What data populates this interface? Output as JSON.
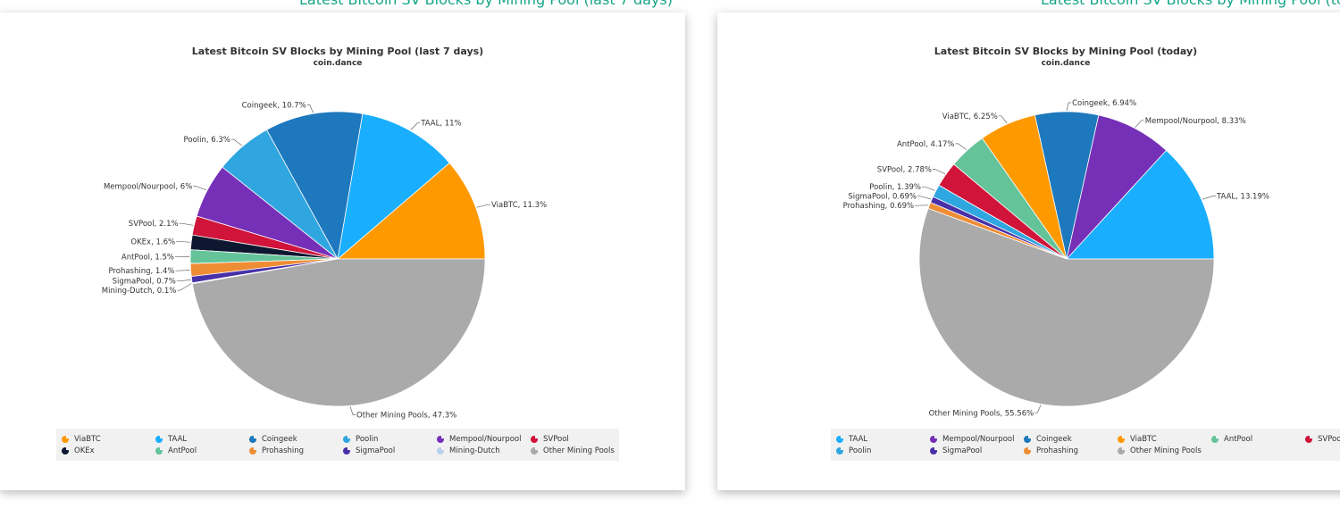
{
  "header": {
    "left_text": "Latest Bitcoin SV Blocks by Mining Pool (last 7 days)",
    "right_text": "Latest Bitcoin SV Blocks by Mining Pool (today)"
  },
  "chart_data": [
    {
      "type": "pie",
      "title": "Latest Bitcoin SV Blocks by Mining Pool (last 7 days)",
      "subtitle": "coin.dance",
      "unit": "%",
      "slices": [
        {
          "name": "ViaBTC",
          "value": 11.3,
          "label": "ViaBTC, 11.3%",
          "color": "#ff9900"
        },
        {
          "name": "TAAL",
          "value": 11,
          "label": "TAAL, 11%",
          "color": "#1aaeff"
        },
        {
          "name": "Coingeek",
          "value": 10.7,
          "label": "Coingeek, 10.7%",
          "color": "#1e78bd"
        },
        {
          "name": "Poolin",
          "value": 6.3,
          "label": "Poolin, 6.3%",
          "color": "#2fa6e0"
        },
        {
          "name": "Mempool/Nourpool",
          "value": 6,
          "label": "Mempool/Nourpool, 6%",
          "color": "#7630b8"
        },
        {
          "name": "SVPool",
          "value": 2.1,
          "label": "SVPool, 2.1%",
          "color": "#d0143a"
        },
        {
          "name": "OKEx",
          "value": 1.6,
          "label": "OKEx, 1.6%",
          "color": "#0e1730"
        },
        {
          "name": "AntPool",
          "value": 1.5,
          "label": "AntPool, 1.5%",
          "color": "#65c39a"
        },
        {
          "name": "Prohashing",
          "value": 1.4,
          "label": "Prohashing, 1.4%",
          "color": "#ef8d35"
        },
        {
          "name": "SigmaPool",
          "value": 0.7,
          "label": "SigmaPool, 0.7%",
          "color": "#4830a8"
        },
        {
          "name": "Mining-Dutch",
          "value": 0.1,
          "label": "Mining-Dutch, 0.1%",
          "color": "#b8d0f0"
        },
        {
          "name": "Other Mining Pools",
          "value": 47.3,
          "label": "Other Mining Pools, 47.3%",
          "color": "#aaaaaa"
        }
      ],
      "legend": [
        "ViaBTC",
        "TAAL",
        "Coingeek",
        "Poolin",
        "Mempool/Nourpool",
        "SVPool",
        "OKEx",
        "AntPool",
        "Prohashing",
        "SigmaPool",
        "Mining-Dutch",
        "Other Mining Pools"
      ],
      "legend_placement": "bottom"
    },
    {
      "type": "pie",
      "title": "Latest Bitcoin SV Blocks by Mining Pool (today)",
      "subtitle": "coin.dance",
      "unit": "%",
      "slices": [
        {
          "name": "TAAL",
          "value": 13.19,
          "label": "TAAL, 13.19%",
          "color": "#1aaeff"
        },
        {
          "name": "Mempool/Nourpool",
          "value": 8.33,
          "label": "Mempool/Nourpool, 8.33%",
          "color": "#7630b8"
        },
        {
          "name": "Coingeek",
          "value": 6.94,
          "label": "Coingeek, 6.94%",
          "color": "#1e78bd"
        },
        {
          "name": "ViaBTC",
          "value": 6.25,
          "label": "ViaBTC, 6.25%",
          "color": "#ff9900"
        },
        {
          "name": "AntPool",
          "value": 4.17,
          "label": "AntPool, 4.17%",
          "color": "#65c39a"
        },
        {
          "name": "SVPool",
          "value": 2.78,
          "label": "SVPool, 2.78%",
          "color": "#d0143a"
        },
        {
          "name": "Poolin",
          "value": 1.39,
          "label": "Poolin, 1.39%",
          "color": "#2fa6e0"
        },
        {
          "name": "SigmaPool",
          "value": 0.69,
          "label": "SigmaPool, 0.69%",
          "color": "#4830a8"
        },
        {
          "name": "Prohashing",
          "value": 0.69,
          "label": "Prohashing, 0.69%",
          "color": "#ef8d35"
        },
        {
          "name": "Other Mining Pools",
          "value": 55.56,
          "label": "Other Mining Pools, 55.56%",
          "color": "#aaaaaa"
        }
      ],
      "legend": [
        "TAAL",
        "Mempool/Nourpool",
        "Coingeek",
        "ViaBTC",
        "AntPool",
        "SVPool",
        "Poolin",
        "SigmaPool",
        "Prohashing",
        "Other Mining Pools"
      ],
      "legend_placement": "bottom"
    }
  ]
}
